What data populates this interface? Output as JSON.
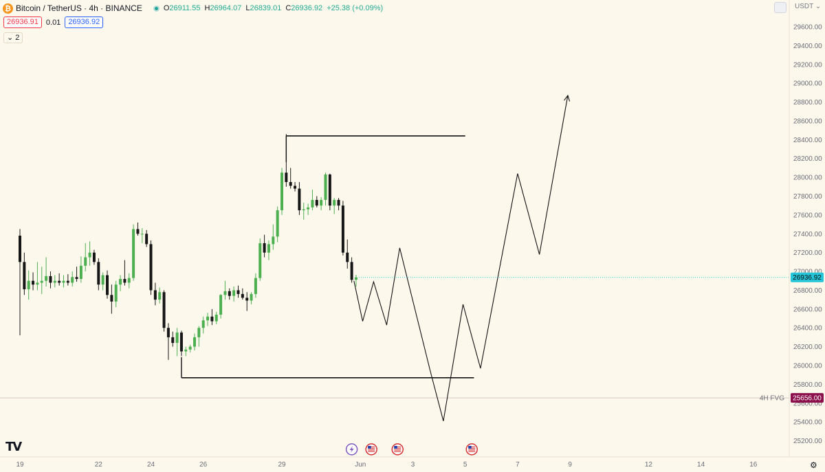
{
  "header": {
    "symbol": "Bitcoin / TetherUS · 4h · BINANCE",
    "coin_glyph": "₿",
    "open_label": "O",
    "open": "26911.55",
    "high_label": "H",
    "high": "26964.07",
    "low_label": "L",
    "low": "26839.01",
    "close_label": "C",
    "close": "26936.92",
    "change": "+25.38 (+0.09%)",
    "bid": "26936.91",
    "spread": "0.01",
    "ask": "26936.92",
    "indicators_toggle": "⌄ 2",
    "currency": "USDT ⌄"
  },
  "logo_text": "TV",
  "settings_glyph": "⚙",
  "colors": {
    "up": "#4caf50",
    "down": "#161616",
    "bg": "#fdf8ec",
    "last_price_tag": "#26c6da",
    "fvg_tag": "#8b0f4a"
  },
  "chart_data": {
    "type": "candlestick",
    "symbol": "BTCUSDT",
    "timeframe": "4h",
    "y_axis": {
      "min": 25100,
      "max": 29800,
      "ticks": [
        25200,
        25400,
        25600,
        25800,
        26000,
        26200,
        26400,
        26600,
        26800,
        27000,
        27200,
        27400,
        27600,
        27800,
        28000,
        28200,
        28400,
        28600,
        28800,
        29000,
        29200,
        29400,
        29600
      ],
      "tick_labels": [
        "25200.00",
        "25400.00",
        "25600.00",
        "25800.00",
        "26000.00",
        "26200.00",
        "26400.00",
        "26600.00",
        "26800.00",
        "27000.00",
        "27200.00",
        "27400.00",
        "27600.00",
        "27800.00",
        "28000.00",
        "28200.00",
        "28400.00",
        "28600.00",
        "28800.00",
        "29000.00",
        "29200.00",
        "29400.00",
        "29600.00"
      ]
    },
    "x_axis": {
      "labels": [
        "19",
        "22",
        "24",
        "26",
        "29",
        "Jun",
        "3",
        "5",
        "7",
        "9",
        "12",
        "14",
        "16"
      ],
      "label_bar_index": [
        0,
        18,
        30,
        42,
        60,
        78,
        90,
        102,
        114,
        126,
        144,
        156,
        168
      ],
      "bar_count": 176
    },
    "candles": [
      {
        "o": 27380,
        "h": 27450,
        "l": 26320,
        "c": 27100
      },
      {
        "o": 27100,
        "h": 27200,
        "l": 26750,
        "c": 26810
      },
      {
        "o": 26810,
        "h": 27010,
        "l": 26700,
        "c": 26900
      },
      {
        "o": 26900,
        "h": 26990,
        "l": 26800,
        "c": 26860
      },
      {
        "o": 26860,
        "h": 27100,
        "l": 26800,
        "c": 26880
      },
      {
        "o": 26880,
        "h": 27050,
        "l": 26760,
        "c": 26900
      },
      {
        "o": 26900,
        "h": 27150,
        "l": 26840,
        "c": 26950
      },
      {
        "o": 26950,
        "h": 27000,
        "l": 26820,
        "c": 26880
      },
      {
        "o": 26880,
        "h": 26960,
        "l": 26830,
        "c": 26900
      },
      {
        "o": 26900,
        "h": 26980,
        "l": 26850,
        "c": 26880
      },
      {
        "o": 26880,
        "h": 26960,
        "l": 26830,
        "c": 26900
      },
      {
        "o": 26900,
        "h": 26970,
        "l": 26850,
        "c": 26880
      },
      {
        "o": 26880,
        "h": 27000,
        "l": 26840,
        "c": 26940
      },
      {
        "o": 26940,
        "h": 27050,
        "l": 26890,
        "c": 26920
      },
      {
        "o": 26920,
        "h": 27160,
        "l": 26880,
        "c": 27060
      },
      {
        "o": 27060,
        "h": 27300,
        "l": 27000,
        "c": 27150
      },
      {
        "o": 27150,
        "h": 27320,
        "l": 27060,
        "c": 27200
      },
      {
        "o": 27200,
        "h": 27230,
        "l": 27070,
        "c": 27100
      },
      {
        "o": 27100,
        "h": 27140,
        "l": 26800,
        "c": 26860
      },
      {
        "o": 26860,
        "h": 26990,
        "l": 26800,
        "c": 26960
      },
      {
        "o": 26960,
        "h": 27010,
        "l": 26710,
        "c": 26750
      },
      {
        "o": 26750,
        "h": 26860,
        "l": 26550,
        "c": 26680
      },
      {
        "o": 26680,
        "h": 26900,
        "l": 26620,
        "c": 26860
      },
      {
        "o": 26860,
        "h": 26960,
        "l": 26790,
        "c": 26920
      },
      {
        "o": 26920,
        "h": 27120,
        "l": 26850,
        "c": 26880
      },
      {
        "o": 26880,
        "h": 26980,
        "l": 26820,
        "c": 26930
      },
      {
        "o": 26930,
        "h": 27500,
        "l": 26900,
        "c": 27450
      },
      {
        "o": 27450,
        "h": 27520,
        "l": 27380,
        "c": 27400
      },
      {
        "o": 27400,
        "h": 27460,
        "l": 27300,
        "c": 27400
      },
      {
        "o": 27400,
        "h": 27440,
        "l": 27260,
        "c": 27290
      },
      {
        "o": 27290,
        "h": 27330,
        "l": 26750,
        "c": 26800
      },
      {
        "o": 26800,
        "h": 26880,
        "l": 26640,
        "c": 26700
      },
      {
        "o": 26700,
        "h": 26830,
        "l": 26660,
        "c": 26780
      },
      {
        "o": 26780,
        "h": 26800,
        "l": 26360,
        "c": 26400
      },
      {
        "o": 26400,
        "h": 26450,
        "l": 26060,
        "c": 26300
      },
      {
        "o": 26300,
        "h": 26360,
        "l": 26200,
        "c": 26240
      },
      {
        "o": 26240,
        "h": 26400,
        "l": 26100,
        "c": 26350
      },
      {
        "o": 26350,
        "h": 26370,
        "l": 26100,
        "c": 26150
      },
      {
        "o": 26150,
        "h": 26200,
        "l": 26100,
        "c": 26170
      },
      {
        "o": 26170,
        "h": 26220,
        "l": 26140,
        "c": 26200
      },
      {
        "o": 26200,
        "h": 26340,
        "l": 26160,
        "c": 26300
      },
      {
        "o": 26300,
        "h": 26420,
        "l": 26200,
        "c": 26400
      },
      {
        "o": 26400,
        "h": 26520,
        "l": 26340,
        "c": 26480
      },
      {
        "o": 26480,
        "h": 26560,
        "l": 26420,
        "c": 26520
      },
      {
        "o": 26520,
        "h": 26600,
        "l": 26430,
        "c": 26470
      },
      {
        "o": 26470,
        "h": 26570,
        "l": 26440,
        "c": 26540
      },
      {
        "o": 26540,
        "h": 26760,
        "l": 26500,
        "c": 26750
      },
      {
        "o": 26750,
        "h": 26900,
        "l": 26700,
        "c": 26790
      },
      {
        "o": 26790,
        "h": 26820,
        "l": 26700,
        "c": 26740
      },
      {
        "o": 26740,
        "h": 26840,
        "l": 26680,
        "c": 26800
      },
      {
        "o": 26800,
        "h": 26850,
        "l": 26720,
        "c": 26760
      },
      {
        "o": 26760,
        "h": 26820,
        "l": 26700,
        "c": 26720
      },
      {
        "o": 26720,
        "h": 26780,
        "l": 26580,
        "c": 26690
      },
      {
        "o": 26690,
        "h": 26780,
        "l": 26650,
        "c": 26760
      },
      {
        "o": 26760,
        "h": 26980,
        "l": 26720,
        "c": 26930
      },
      {
        "o": 26930,
        "h": 27350,
        "l": 26900,
        "c": 27300
      },
      {
        "o": 27300,
        "h": 27390,
        "l": 27150,
        "c": 27200
      },
      {
        "o": 27200,
        "h": 27330,
        "l": 27120,
        "c": 27290
      },
      {
        "o": 27290,
        "h": 27500,
        "l": 27230,
        "c": 27370
      },
      {
        "o": 27370,
        "h": 27690,
        "l": 27310,
        "c": 27650
      },
      {
        "o": 27650,
        "h": 28100,
        "l": 27600,
        "c": 28050
      },
      {
        "o": 28050,
        "h": 28460,
        "l": 27900,
        "c": 27950
      },
      {
        "o": 27950,
        "h": 28100,
        "l": 27880,
        "c": 27910
      },
      {
        "o": 27910,
        "h": 27950,
        "l": 27850,
        "c": 27880
      },
      {
        "o": 27880,
        "h": 27950,
        "l": 27600,
        "c": 27650
      },
      {
        "o": 27650,
        "h": 27730,
        "l": 27550,
        "c": 27660
      },
      {
        "o": 27660,
        "h": 27720,
        "l": 27600,
        "c": 27680
      },
      {
        "o": 27680,
        "h": 27870,
        "l": 27650,
        "c": 27760
      },
      {
        "o": 27760,
        "h": 27800,
        "l": 27680,
        "c": 27700
      },
      {
        "o": 27700,
        "h": 27790,
        "l": 27650,
        "c": 27760
      },
      {
        "o": 27760,
        "h": 28050,
        "l": 27700,
        "c": 28030
      },
      {
        "o": 28030,
        "h": 28040,
        "l": 27650,
        "c": 27700
      },
      {
        "o": 27700,
        "h": 27780,
        "l": 27610,
        "c": 27760
      },
      {
        "o": 27760,
        "h": 27780,
        "l": 27650,
        "c": 27700
      },
      {
        "o": 27700,
        "h": 27750,
        "l": 27170,
        "c": 27200
      },
      {
        "o": 27200,
        "h": 27340,
        "l": 27030,
        "c": 27100
      },
      {
        "o": 27100,
        "h": 27150,
        "l": 26880,
        "c": 26910
      },
      {
        "o": 26911.55,
        "h": 26964.07,
        "l": 26839.01,
        "c": 26936.92
      }
    ],
    "horizontal_lines": [
      {
        "name": "range-top",
        "price": 28440,
        "from_bar": 61,
        "to_bar": 102
      },
      {
        "name": "range-bottom",
        "price": 25870,
        "from_bar": 37,
        "to_bar": 104
      }
    ],
    "fvg_level": {
      "price": 25656,
      "label": "4H FVG",
      "tag": "25656.00"
    },
    "last_price": {
      "price": 26936.92,
      "tag": "26936.92"
    },
    "projection_path": [
      {
        "bar": 76.5,
        "price": 26900
      },
      {
        "bar": 78.5,
        "price": 26470
      },
      {
        "bar": 81,
        "price": 26890
      },
      {
        "bar": 84,
        "price": 26430
      },
      {
        "bar": 87,
        "price": 27250
      },
      {
        "bar": 94,
        "price": 25940
      },
      {
        "bar": 97,
        "price": 25410
      },
      {
        "bar": 101.5,
        "price": 26650
      },
      {
        "bar": 105.5,
        "price": 25970
      },
      {
        "bar": 114,
        "price": 28040
      },
      {
        "bar": 119,
        "price": 27180
      },
      {
        "bar": 125.5,
        "price": 28870
      }
    ],
    "event_markers": [
      {
        "bar": 76,
        "kind": "lightning"
      },
      {
        "bar": 80.5,
        "kind": "us-flag"
      },
      {
        "bar": 86.5,
        "kind": "us-flag"
      },
      {
        "bar": 103.5,
        "kind": "us-flag"
      }
    ]
  }
}
